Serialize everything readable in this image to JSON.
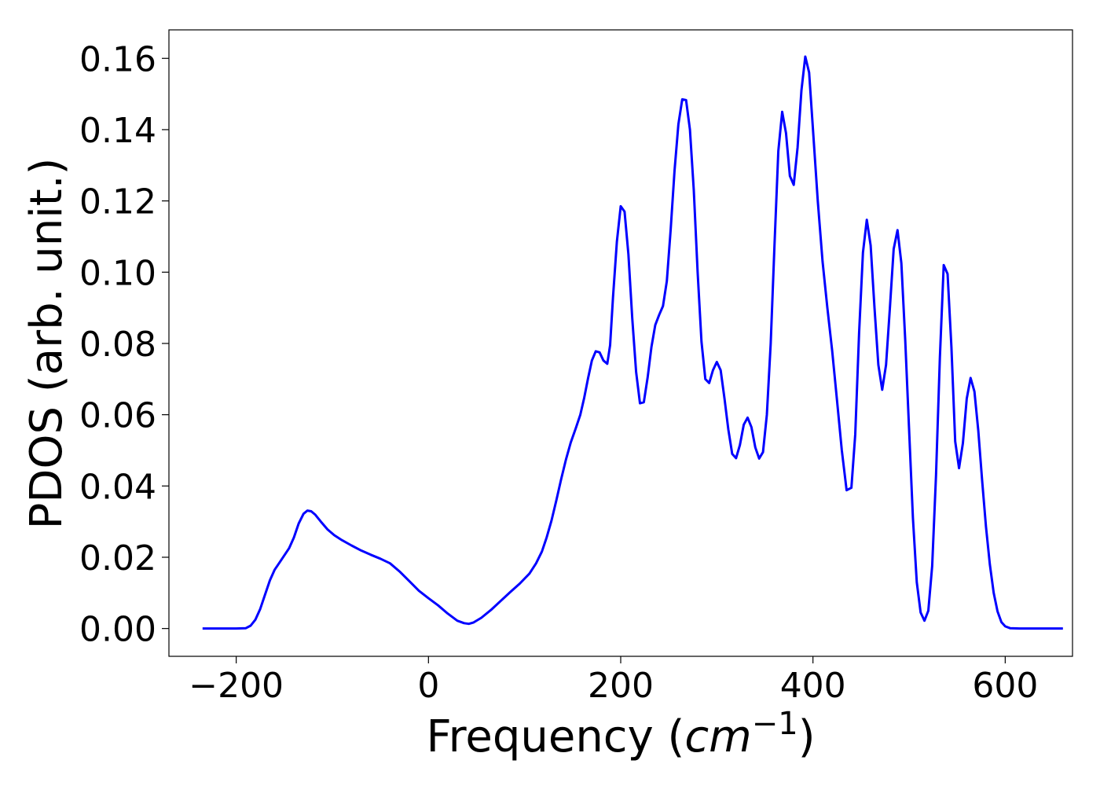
{
  "chart_data": {
    "type": "line",
    "xlabel": "Frequency",
    "xlabel_unit": "cm",
    "xlabel_unit_exponent": "−1",
    "ylabel": "PDOS (arb. unit.)",
    "xlim": [
      -270,
      670
    ],
    "ylim": [
      -0.0078,
      0.168
    ],
    "x_ticks": [
      -200,
      0,
      200,
      400,
      600
    ],
    "x_tick_labels": [
      "−200",
      "0",
      "200",
      "400",
      "600"
    ],
    "y_ticks": [
      0.0,
      0.02,
      0.04,
      0.06,
      0.08,
      0.1,
      0.12,
      0.14,
      0.16
    ],
    "y_tick_labels": [
      "0.00",
      "0.02",
      "0.04",
      "0.06",
      "0.08",
      "0.10",
      "0.12",
      "0.14",
      "0.16"
    ],
    "grid": false,
    "legend": "none",
    "series": [
      {
        "color": "#0000ff",
        "points": [
          [
            -235,
            0.0
          ],
          [
            -200,
            0.0
          ],
          [
            -190,
            0.0001
          ],
          [
            -185,
            0.0008
          ],
          [
            -180,
            0.0025
          ],
          [
            -175,
            0.0055
          ],
          [
            -170,
            0.0095
          ],
          [
            -165,
            0.0135
          ],
          [
            -160,
            0.0165
          ],
          [
            -155,
            0.0185
          ],
          [
            -150,
            0.0205
          ],
          [
            -145,
            0.0225
          ],
          [
            -140,
            0.0255
          ],
          [
            -135,
            0.0295
          ],
          [
            -130,
            0.0322
          ],
          [
            -126,
            0.0331
          ],
          [
            -122,
            0.0329
          ],
          [
            -118,
            0.032
          ],
          [
            -112,
            0.03
          ],
          [
            -105,
            0.0278
          ],
          [
            -98,
            0.0262
          ],
          [
            -90,
            0.0248
          ],
          [
            -80,
            0.0233
          ],
          [
            -70,
            0.0219
          ],
          [
            -60,
            0.0207
          ],
          [
            -50,
            0.0196
          ],
          [
            -40,
            0.0183
          ],
          [
            -30,
            0.016
          ],
          [
            -20,
            0.0133
          ],
          [
            -10,
            0.0106
          ],
          [
            0,
            0.0085
          ],
          [
            10,
            0.0065
          ],
          [
            20,
            0.0042
          ],
          [
            30,
            0.0022
          ],
          [
            37,
            0.0015
          ],
          [
            42,
            0.0013
          ],
          [
            47,
            0.0017
          ],
          [
            55,
            0.003
          ],
          [
            65,
            0.0052
          ],
          [
            75,
            0.0077
          ],
          [
            85,
            0.0102
          ],
          [
            95,
            0.0126
          ],
          [
            105,
            0.0154
          ],
          [
            112,
            0.0183
          ],
          [
            118,
            0.0216
          ],
          [
            123,
            0.0256
          ],
          [
            128,
            0.0303
          ],
          [
            133,
            0.0359
          ],
          [
            138,
            0.0418
          ],
          [
            143,
            0.0474
          ],
          [
            148,
            0.0522
          ],
          [
            153,
            0.056
          ],
          [
            158,
            0.06
          ],
          [
            162,
            0.0647
          ],
          [
            166,
            0.0702
          ],
          [
            170,
            0.0752
          ],
          [
            174,
            0.0778
          ],
          [
            178,
            0.0775
          ],
          [
            182,
            0.0752
          ],
          [
            186,
            0.0743
          ],
          [
            189,
            0.0795
          ],
          [
            192,
            0.093
          ],
          [
            196,
            0.1085
          ],
          [
            200,
            0.1185
          ],
          [
            204,
            0.117
          ],
          [
            208,
            0.105
          ],
          [
            212,
            0.087
          ],
          [
            216,
            0.072
          ],
          [
            220,
            0.0632
          ],
          [
            224,
            0.0635
          ],
          [
            228,
            0.0705
          ],
          [
            232,
            0.079
          ],
          [
            236,
            0.0852
          ],
          [
            240,
            0.088
          ],
          [
            244,
            0.0905
          ],
          [
            248,
            0.0975
          ],
          [
            252,
            0.112
          ],
          [
            256,
            0.1285
          ],
          [
            260,
            0.1415
          ],
          [
            264,
            0.1485
          ],
          [
            268,
            0.1483
          ],
          [
            272,
            0.14
          ],
          [
            276,
            0.123
          ],
          [
            280,
            0.1
          ],
          [
            284,
            0.0805
          ],
          [
            288,
            0.07
          ],
          [
            292,
            0.0689
          ],
          [
            296,
            0.0725
          ],
          [
            300,
            0.0748
          ],
          [
            304,
            0.0725
          ],
          [
            308,
            0.0645
          ],
          [
            312,
            0.0558
          ],
          [
            316,
            0.049
          ],
          [
            320,
            0.0478
          ],
          [
            324,
            0.0515
          ],
          [
            328,
            0.0572
          ],
          [
            332,
            0.0592
          ],
          [
            336,
            0.0565
          ],
          [
            340,
            0.0508
          ],
          [
            344,
            0.0477
          ],
          [
            348,
            0.0495
          ],
          [
            352,
            0.06
          ],
          [
            356,
            0.08
          ],
          [
            360,
            0.1075
          ],
          [
            364,
            0.134
          ],
          [
            368,
            0.145
          ],
          [
            372,
            0.139
          ],
          [
            376,
            0.127
          ],
          [
            380,
            0.1245
          ],
          [
            384,
            0.135
          ],
          [
            388,
            0.151
          ],
          [
            392,
            0.1605
          ],
          [
            396,
            0.156
          ],
          [
            400,
            0.14
          ],
          [
            405,
            0.12
          ],
          [
            410,
            0.103
          ],
          [
            415,
            0.09
          ],
          [
            420,
            0.078
          ],
          [
            425,
            0.064
          ],
          [
            430,
            0.05
          ],
          [
            435,
            0.0388
          ],
          [
            440,
            0.0395
          ],
          [
            444,
            0.0545
          ],
          [
            448,
            0.083
          ],
          [
            452,
            0.1055
          ],
          [
            456,
            0.1147
          ],
          [
            460,
            0.1075
          ],
          [
            464,
            0.09
          ],
          [
            468,
            0.074
          ],
          [
            472,
            0.067
          ],
          [
            476,
            0.074
          ],
          [
            480,
            0.09
          ],
          [
            484,
            0.1065
          ],
          [
            488,
            0.1118
          ],
          [
            492,
            0.1025
          ],
          [
            496,
            0.081
          ],
          [
            500,
            0.056
          ],
          [
            504,
            0.031
          ],
          [
            508,
            0.013
          ],
          [
            512,
            0.0045
          ],
          [
            516,
            0.0022
          ],
          [
            520,
            0.005
          ],
          [
            524,
            0.0175
          ],
          [
            528,
            0.043
          ],
          [
            532,
            0.076
          ],
          [
            536,
            0.102
          ],
          [
            540,
            0.0995
          ],
          [
            544,
            0.079
          ],
          [
            548,
            0.0525
          ],
          [
            552,
            0.045
          ],
          [
            556,
            0.052
          ],
          [
            560,
            0.0645
          ],
          [
            564,
            0.0703
          ],
          [
            568,
            0.0665
          ],
          [
            572,
            0.0555
          ],
          [
            576,
            0.0415
          ],
          [
            580,
            0.0285
          ],
          [
            584,
            0.018
          ],
          [
            588,
            0.01
          ],
          [
            592,
            0.0048
          ],
          [
            596,
            0.0018
          ],
          [
            600,
            0.0006
          ],
          [
            605,
            0.0001
          ],
          [
            615,
            0.0
          ],
          [
            630,
            0.0
          ],
          [
            645,
            0.0
          ],
          [
            660,
            0.0
          ]
        ]
      }
    ]
  }
}
